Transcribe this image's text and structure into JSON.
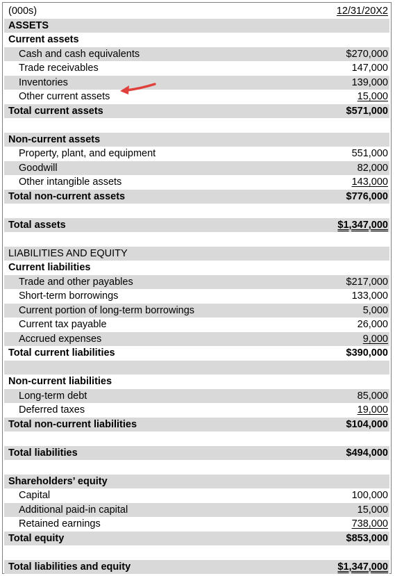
{
  "header": {
    "units": "(000s)",
    "date": "12/31/20X2"
  },
  "rows": [
    {
      "label": "ASSETS",
      "value": "",
      "bold": true,
      "indent": false,
      "shade": true,
      "underline": ""
    },
    {
      "label": "Current assets",
      "value": "",
      "bold": true,
      "indent": false,
      "shade": false,
      "underline": ""
    },
    {
      "label": "Cash and cash equivalents",
      "value": "$270,000",
      "bold": false,
      "indent": true,
      "shade": true,
      "underline": ""
    },
    {
      "label": "Trade receivables",
      "value": "147,000",
      "bold": false,
      "indent": true,
      "shade": false,
      "underline": ""
    },
    {
      "label": "Inventories",
      "value": "139,000",
      "bold": false,
      "indent": true,
      "shade": true,
      "underline": ""
    },
    {
      "label": "Other current assets",
      "value": "15,000",
      "bold": false,
      "indent": true,
      "shade": false,
      "underline": "single"
    },
    {
      "label": "Total current assets",
      "value": "$571,000",
      "bold": true,
      "indent": false,
      "shade": true,
      "underline": ""
    },
    {
      "label": "",
      "value": "",
      "bold": false,
      "indent": false,
      "shade": false,
      "underline": ""
    },
    {
      "label": "Non-current assets",
      "value": "",
      "bold": true,
      "indent": false,
      "shade": true,
      "underline": ""
    },
    {
      "label": "Property, plant, and equipment",
      "value": "551,000",
      "bold": false,
      "indent": true,
      "shade": false,
      "underline": ""
    },
    {
      "label": "Goodwill",
      "value": "82,000",
      "bold": false,
      "indent": true,
      "shade": true,
      "underline": ""
    },
    {
      "label": "Other intangible assets",
      "value": "143,000",
      "bold": false,
      "indent": true,
      "shade": false,
      "underline": "single"
    },
    {
      "label": "Total non-current assets",
      "value": "$776,000",
      "bold": true,
      "indent": false,
      "shade": true,
      "underline": ""
    },
    {
      "label": "",
      "value": "",
      "bold": false,
      "indent": false,
      "shade": false,
      "underline": ""
    },
    {
      "label": "Total assets",
      "value": "$1,347,000",
      "bold": true,
      "indent": false,
      "shade": true,
      "underline": "double"
    },
    {
      "label": "",
      "value": "",
      "bold": false,
      "indent": false,
      "shade": false,
      "underline": ""
    },
    {
      "label": "LIABILITIES AND EQUITY",
      "value": "",
      "bold": false,
      "indent": false,
      "shade": true,
      "underline": ""
    },
    {
      "label": "Current liabilities",
      "value": "",
      "bold": true,
      "indent": false,
      "shade": false,
      "underline": ""
    },
    {
      "label": "Trade and other payables",
      "value": "$217,000",
      "bold": false,
      "indent": true,
      "shade": true,
      "underline": ""
    },
    {
      "label": "Short-term borrowings",
      "value": "133,000",
      "bold": false,
      "indent": true,
      "shade": false,
      "underline": ""
    },
    {
      "label": "Current portion of long-term borrowings",
      "value": "5,000",
      "bold": false,
      "indent": true,
      "shade": true,
      "underline": ""
    },
    {
      "label": "Current tax payable",
      "value": "26,000",
      "bold": false,
      "indent": true,
      "shade": false,
      "underline": ""
    },
    {
      "label": "Accrued expenses",
      "value": "9,000",
      "bold": false,
      "indent": true,
      "shade": true,
      "underline": "single"
    },
    {
      "label": "Total current liabilities",
      "value": "$390,000",
      "bold": true,
      "indent": false,
      "shade": false,
      "underline": ""
    },
    {
      "label": "",
      "value": "",
      "bold": false,
      "indent": false,
      "shade": true,
      "underline": ""
    },
    {
      "label": "Non-current liabilities",
      "value": "",
      "bold": true,
      "indent": false,
      "shade": false,
      "underline": ""
    },
    {
      "label": "Long-term debt",
      "value": "85,000",
      "bold": false,
      "indent": true,
      "shade": true,
      "underline": ""
    },
    {
      "label": "Deferred taxes",
      "value": "19,000",
      "bold": false,
      "indent": true,
      "shade": false,
      "underline": "single"
    },
    {
      "label": "Total non-current liabilities",
      "value": "$104,000",
      "bold": true,
      "indent": false,
      "shade": true,
      "underline": ""
    },
    {
      "label": "",
      "value": "",
      "bold": false,
      "indent": false,
      "shade": false,
      "underline": ""
    },
    {
      "label": "Total liabilities",
      "value": "$494,000",
      "bold": true,
      "indent": false,
      "shade": true,
      "underline": ""
    },
    {
      "label": "",
      "value": "",
      "bold": false,
      "indent": false,
      "shade": false,
      "underline": ""
    },
    {
      "label": "Shareholders’ equity",
      "value": "",
      "bold": true,
      "indent": false,
      "shade": true,
      "underline": ""
    },
    {
      "label": "Capital",
      "value": "100,000",
      "bold": false,
      "indent": true,
      "shade": false,
      "underline": ""
    },
    {
      "label": "Additional paid-in capital",
      "value": "15,000",
      "bold": false,
      "indent": true,
      "shade": true,
      "underline": ""
    },
    {
      "label": "Retained earnings",
      "value": "738,000",
      "bold": false,
      "indent": true,
      "shade": false,
      "underline": "single"
    },
    {
      "label": "Total equity",
      "value": "$853,000",
      "bold": true,
      "indent": false,
      "shade": true,
      "underline": ""
    },
    {
      "label": "",
      "value": "",
      "bold": false,
      "indent": false,
      "shade": false,
      "underline": ""
    },
    {
      "label": "Total liabilities and equity",
      "value": "$1,347,000",
      "bold": true,
      "indent": false,
      "shade": true,
      "underline": "double"
    }
  ],
  "colors": {
    "shade": "#d9d9d9",
    "border": "#7f7f7f",
    "arrow": "#e0413c"
  },
  "annotation": {
    "icon": "red-arrow-icon",
    "points_to": "Other current assets"
  }
}
